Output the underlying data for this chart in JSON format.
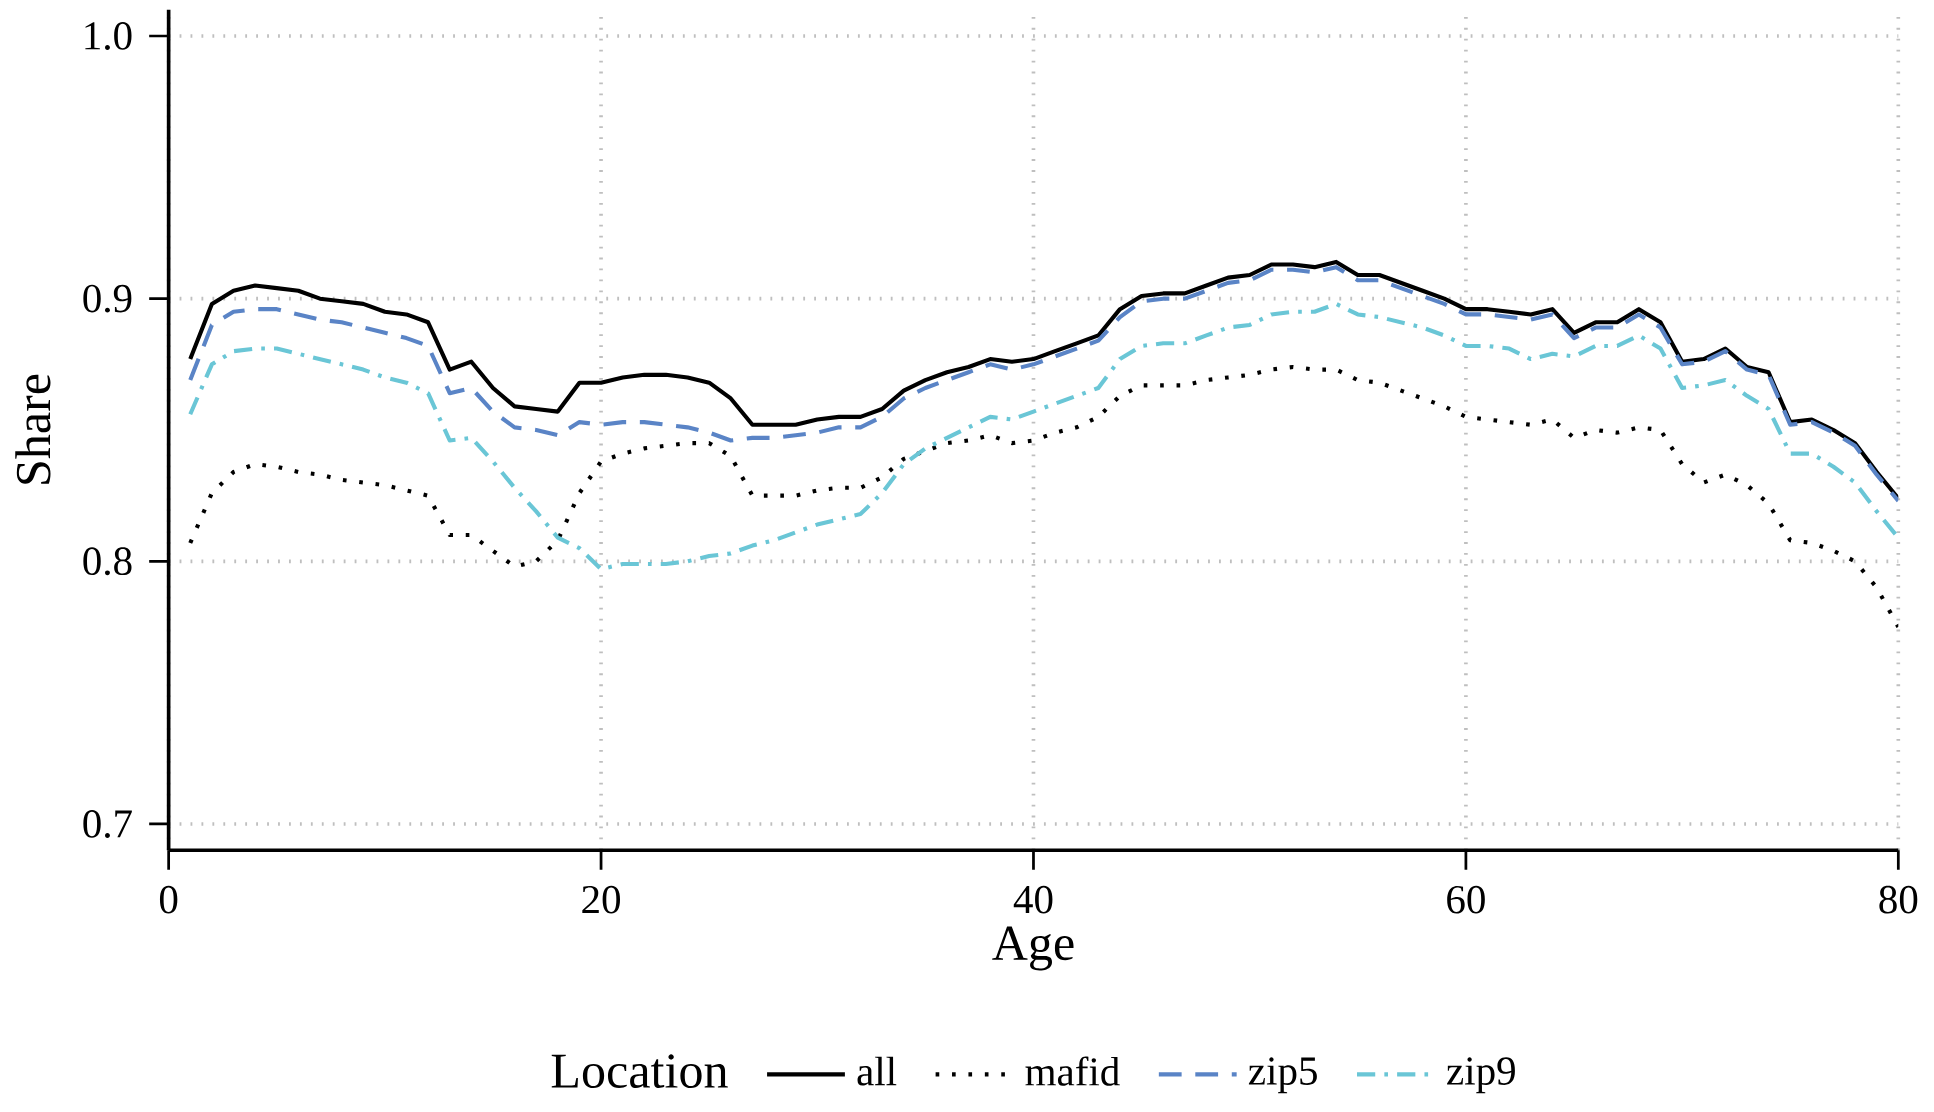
{
  "chart_data": {
    "type": "line",
    "xlabel": "Age",
    "ylabel": "Share",
    "legend_title": "Location",
    "legend": "bottom",
    "grid": true,
    "marker": "none",
    "xlim": [
      0,
      80
    ],
    "xticks": [
      0,
      20,
      40,
      60,
      80
    ],
    "ylim": [
      0.69,
      1.01
    ],
    "yticks": [
      0.7,
      0.8,
      0.9,
      {
        "value": 1,
        "label": "1.0"
      }
    ],
    "x": [
      1,
      2,
      3,
      4,
      5,
      6,
      7,
      8,
      9,
      10,
      11,
      12,
      13,
      14,
      15,
      16,
      17,
      18,
      19,
      20,
      21,
      22,
      23,
      24,
      25,
      26,
      27,
      28,
      29,
      30,
      31,
      32,
      33,
      34,
      35,
      36,
      37,
      38,
      39,
      40,
      41,
      42,
      43,
      44,
      45,
      46,
      47,
      48,
      49,
      50,
      51,
      52,
      53,
      54,
      55,
      56,
      57,
      58,
      59,
      60,
      61,
      62,
      63,
      64,
      65,
      66,
      67,
      68,
      69,
      70,
      71,
      72,
      73,
      74,
      75,
      76,
      77,
      78,
      79,
      80
    ],
    "series": [
      {
        "name": "all",
        "color": "#000000",
        "line_style": "solid",
        "values": [
          0.877,
          0.898,
          0.903,
          0.905,
          0.904,
          0.903,
          0.9,
          0.899,
          0.898,
          0.895,
          0.894,
          0.891,
          0.873,
          0.876,
          0.866,
          0.859,
          0.858,
          0.857,
          0.868,
          0.868,
          0.87,
          0.871,
          0.871,
          0.87,
          0.868,
          0.862,
          0.852,
          0.852,
          0.852,
          0.854,
          0.855,
          0.855,
          0.858,
          0.865,
          0.869,
          0.872,
          0.874,
          0.877,
          0.876,
          0.877,
          0.88,
          0.883,
          0.886,
          0.896,
          0.901,
          0.902,
          0.902,
          0.905,
          0.908,
          0.909,
          0.913,
          0.913,
          0.912,
          0.914,
          0.909,
          0.909,
          0.906,
          0.903,
          0.9,
          0.896,
          0.896,
          0.895,
          0.894,
          0.896,
          0.887,
          0.891,
          0.891,
          0.896,
          0.891,
          0.876,
          0.877,
          0.881,
          0.874,
          0.872,
          0.853,
          0.854,
          0.85,
          0.845,
          0.834,
          0.824
        ]
      },
      {
        "name": "mafid",
        "color": "#000000",
        "line_style": "dotted",
        "values": [
          0.807,
          0.826,
          0.834,
          0.837,
          0.836,
          0.834,
          0.833,
          0.831,
          0.83,
          0.829,
          0.827,
          0.825,
          0.81,
          0.81,
          0.804,
          0.798,
          0.8,
          0.808,
          0.826,
          0.838,
          0.841,
          0.843,
          0.844,
          0.845,
          0.845,
          0.84,
          0.825,
          0.825,
          0.825,
          0.827,
          0.828,
          0.828,
          0.832,
          0.839,
          0.842,
          0.845,
          0.846,
          0.848,
          0.845,
          0.846,
          0.849,
          0.851,
          0.855,
          0.863,
          0.867,
          0.867,
          0.867,
          0.869,
          0.87,
          0.871,
          0.873,
          0.874,
          0.873,
          0.873,
          0.869,
          0.868,
          0.865,
          0.862,
          0.859,
          0.855,
          0.854,
          0.853,
          0.852,
          0.854,
          0.847,
          0.85,
          0.849,
          0.851,
          0.85,
          0.837,
          0.83,
          0.833,
          0.829,
          0.822,
          0.808,
          0.807,
          0.804,
          0.8,
          0.79,
          0.775
        ]
      },
      {
        "name": "zip5",
        "color": "#5a84c6",
        "line_style": "dashed",
        "values": [
          0.869,
          0.89,
          0.895,
          0.896,
          0.896,
          0.894,
          0.892,
          0.891,
          0.889,
          0.887,
          0.885,
          0.882,
          0.864,
          0.866,
          0.857,
          0.851,
          0.85,
          0.848,
          0.853,
          0.852,
          0.853,
          0.853,
          0.852,
          0.851,
          0.849,
          0.846,
          0.847,
          0.847,
          0.848,
          0.849,
          0.851,
          0.851,
          0.855,
          0.862,
          0.866,
          0.869,
          0.872,
          0.875,
          0.873,
          0.875,
          0.878,
          0.881,
          0.884,
          0.893,
          0.899,
          0.9,
          0.9,
          0.903,
          0.906,
          0.907,
          0.911,
          0.911,
          0.91,
          0.912,
          0.907,
          0.907,
          0.904,
          0.901,
          0.898,
          0.894,
          0.894,
          0.893,
          0.892,
          0.894,
          0.885,
          0.889,
          0.889,
          0.894,
          0.889,
          0.875,
          0.876,
          0.88,
          0.873,
          0.871,
          0.852,
          0.853,
          0.849,
          0.844,
          0.833,
          0.823
        ]
      },
      {
        "name": "zip9",
        "color": "#6ac6d6",
        "line_style": "dashdot",
        "values": [
          0.856,
          0.875,
          0.88,
          0.881,
          0.881,
          0.879,
          0.877,
          0.875,
          0.873,
          0.87,
          0.868,
          0.864,
          0.846,
          0.847,
          0.838,
          0.828,
          0.819,
          0.809,
          0.805,
          0.797,
          0.799,
          0.799,
          0.799,
          0.8,
          0.802,
          0.803,
          0.806,
          0.808,
          0.811,
          0.814,
          0.816,
          0.818,
          0.826,
          0.837,
          0.843,
          0.847,
          0.851,
          0.855,
          0.854,
          0.857,
          0.86,
          0.863,
          0.866,
          0.877,
          0.882,
          0.883,
          0.883,
          0.886,
          0.889,
          0.89,
          0.894,
          0.895,
          0.895,
          0.898,
          0.894,
          0.893,
          0.891,
          0.889,
          0.886,
          0.882,
          0.882,
          0.881,
          0.877,
          0.879,
          0.878,
          0.882,
          0.882,
          0.886,
          0.881,
          0.866,
          0.867,
          0.869,
          0.863,
          0.858,
          0.841,
          0.841,
          0.836,
          0.83,
          0.819,
          0.809
        ]
      }
    ]
  }
}
